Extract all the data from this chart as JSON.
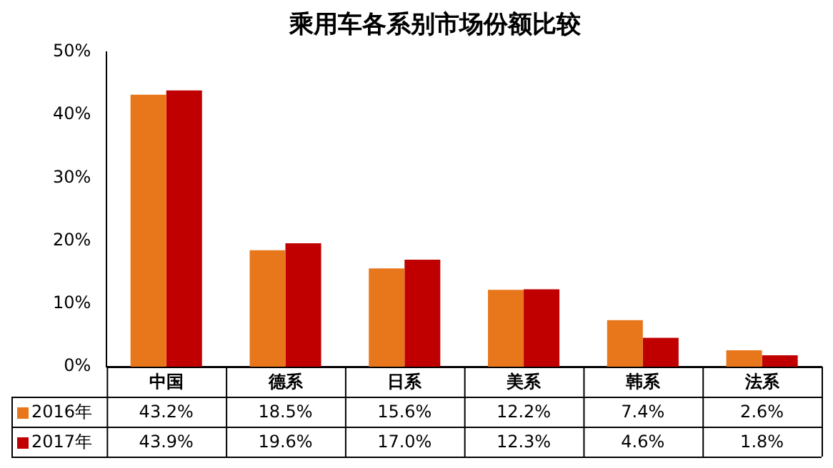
{
  "chart_data": {
    "type": "bar",
    "title": "乘用车各系别市场份额比较",
    "categories": [
      "中国",
      "德系",
      "日系",
      "美系",
      "韩系",
      "法系"
    ],
    "series": [
      {
        "name": "2016年",
        "color": "#e8761a",
        "values": [
          43.2,
          18.5,
          15.6,
          12.2,
          7.4,
          2.6
        ],
        "value_labels": [
          "43.2%",
          "18.5%",
          "15.6%",
          "12.2%",
          "7.4%",
          "2.6%"
        ]
      },
      {
        "name": "2017年",
        "color": "#c00000",
        "values": [
          43.9,
          19.6,
          17.0,
          12.3,
          4.6,
          1.8
        ],
        "value_labels": [
          "43.9%",
          "19.6%",
          "17.0%",
          "12.3%",
          "4.6%",
          "1.8%"
        ]
      }
    ],
    "ylim": [
      0,
      50
    ],
    "yticks": [
      {
        "value": 0,
        "label": "0%"
      },
      {
        "value": 10,
        "label": "10%"
      },
      {
        "value": 20,
        "label": "20%"
      },
      {
        "value": 30,
        "label": "30%"
      },
      {
        "value": 40,
        "label": "40%"
      },
      {
        "value": 50,
        "label": "50%"
      }
    ],
    "grid": false,
    "legend": "bottom left"
  }
}
